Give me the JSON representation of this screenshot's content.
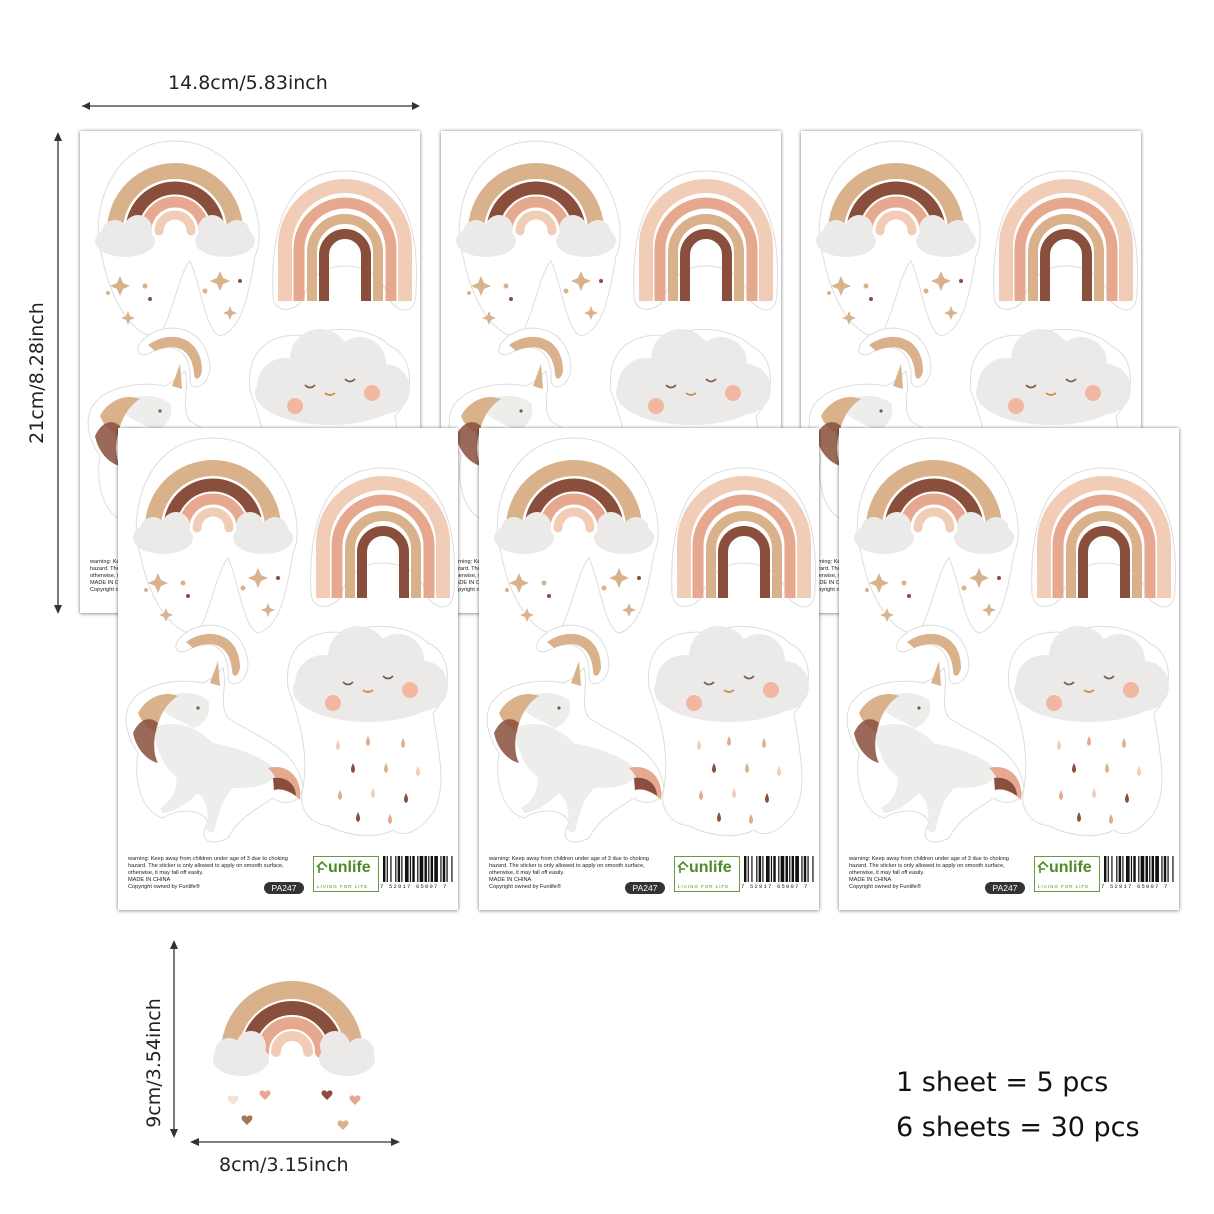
{
  "dimensions": {
    "sheet_width": "14.8cm/5.83inch",
    "sheet_height": "21cm/8.28inch",
    "piece_height": "9cm/3.54inch",
    "piece_width": "8cm/3.15inch"
  },
  "sheet": {
    "warning_lines": [
      "warning: Keep away from children under age of 3 due to choking",
      "hazard. The sticker is only allowed to apply on smooth surface,",
      "otherwise, it may fall off easily."
    ],
    "made_in": "MADE IN CHINA",
    "copyright": "Copyright owned by Funlife®",
    "product_code": "PA247",
    "brand_name": "unlife",
    "brand_tagline": "LIVING FOR LIFE",
    "barcode_number": "7 52917 65007 7",
    "sheet_count": 6
  },
  "summary": {
    "line1": "1 sheet = 5 pcs",
    "line2": "6 sheets = 30 pcs"
  },
  "colors": {
    "rainbow_tan": "#d9b28c",
    "rainbow_brown": "#8a4f3c",
    "rainbow_pink": "#e6a98f",
    "rainbow_blush": "#f1cdb8",
    "cloud_grey": "#eceae8",
    "cheek_pink": "#f2b7a0"
  }
}
